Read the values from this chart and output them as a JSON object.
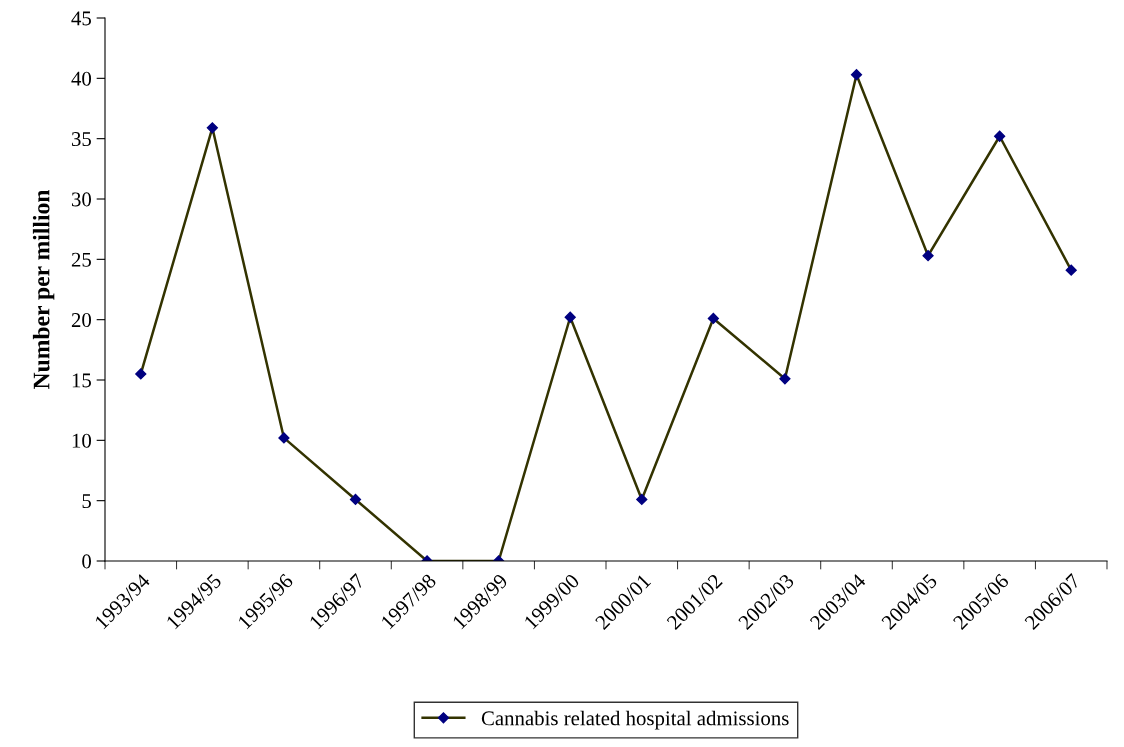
{
  "chart_data": {
    "type": "line",
    "ylabel": "Number per million",
    "categories": [
      "1993/94",
      "1994/95",
      "1995/96",
      "1996/97",
      "1997/98",
      "1998/99",
      "1999/00",
      "2000/01",
      "2001/02",
      "2002/03",
      "2003/04",
      "2004/05",
      "2005/06",
      "2006/07"
    ],
    "series": [
      {
        "name": "Cannabis related hospital admissions",
        "color": "#333300",
        "values": [
          15.5,
          35.9,
          10.2,
          5.1,
          0,
          0,
          20.2,
          5.1,
          20.1,
          15.1,
          40.3,
          25.3,
          35.2,
          24.1
        ]
      }
    ],
    "ylim": [
      0,
      45
    ],
    "yticks": [
      0,
      5,
      10,
      15,
      20,
      25,
      30,
      35,
      40,
      45
    ],
    "grid": false,
    "legend": "bottom",
    "marker": "diamond",
    "line_style": "solid"
  }
}
